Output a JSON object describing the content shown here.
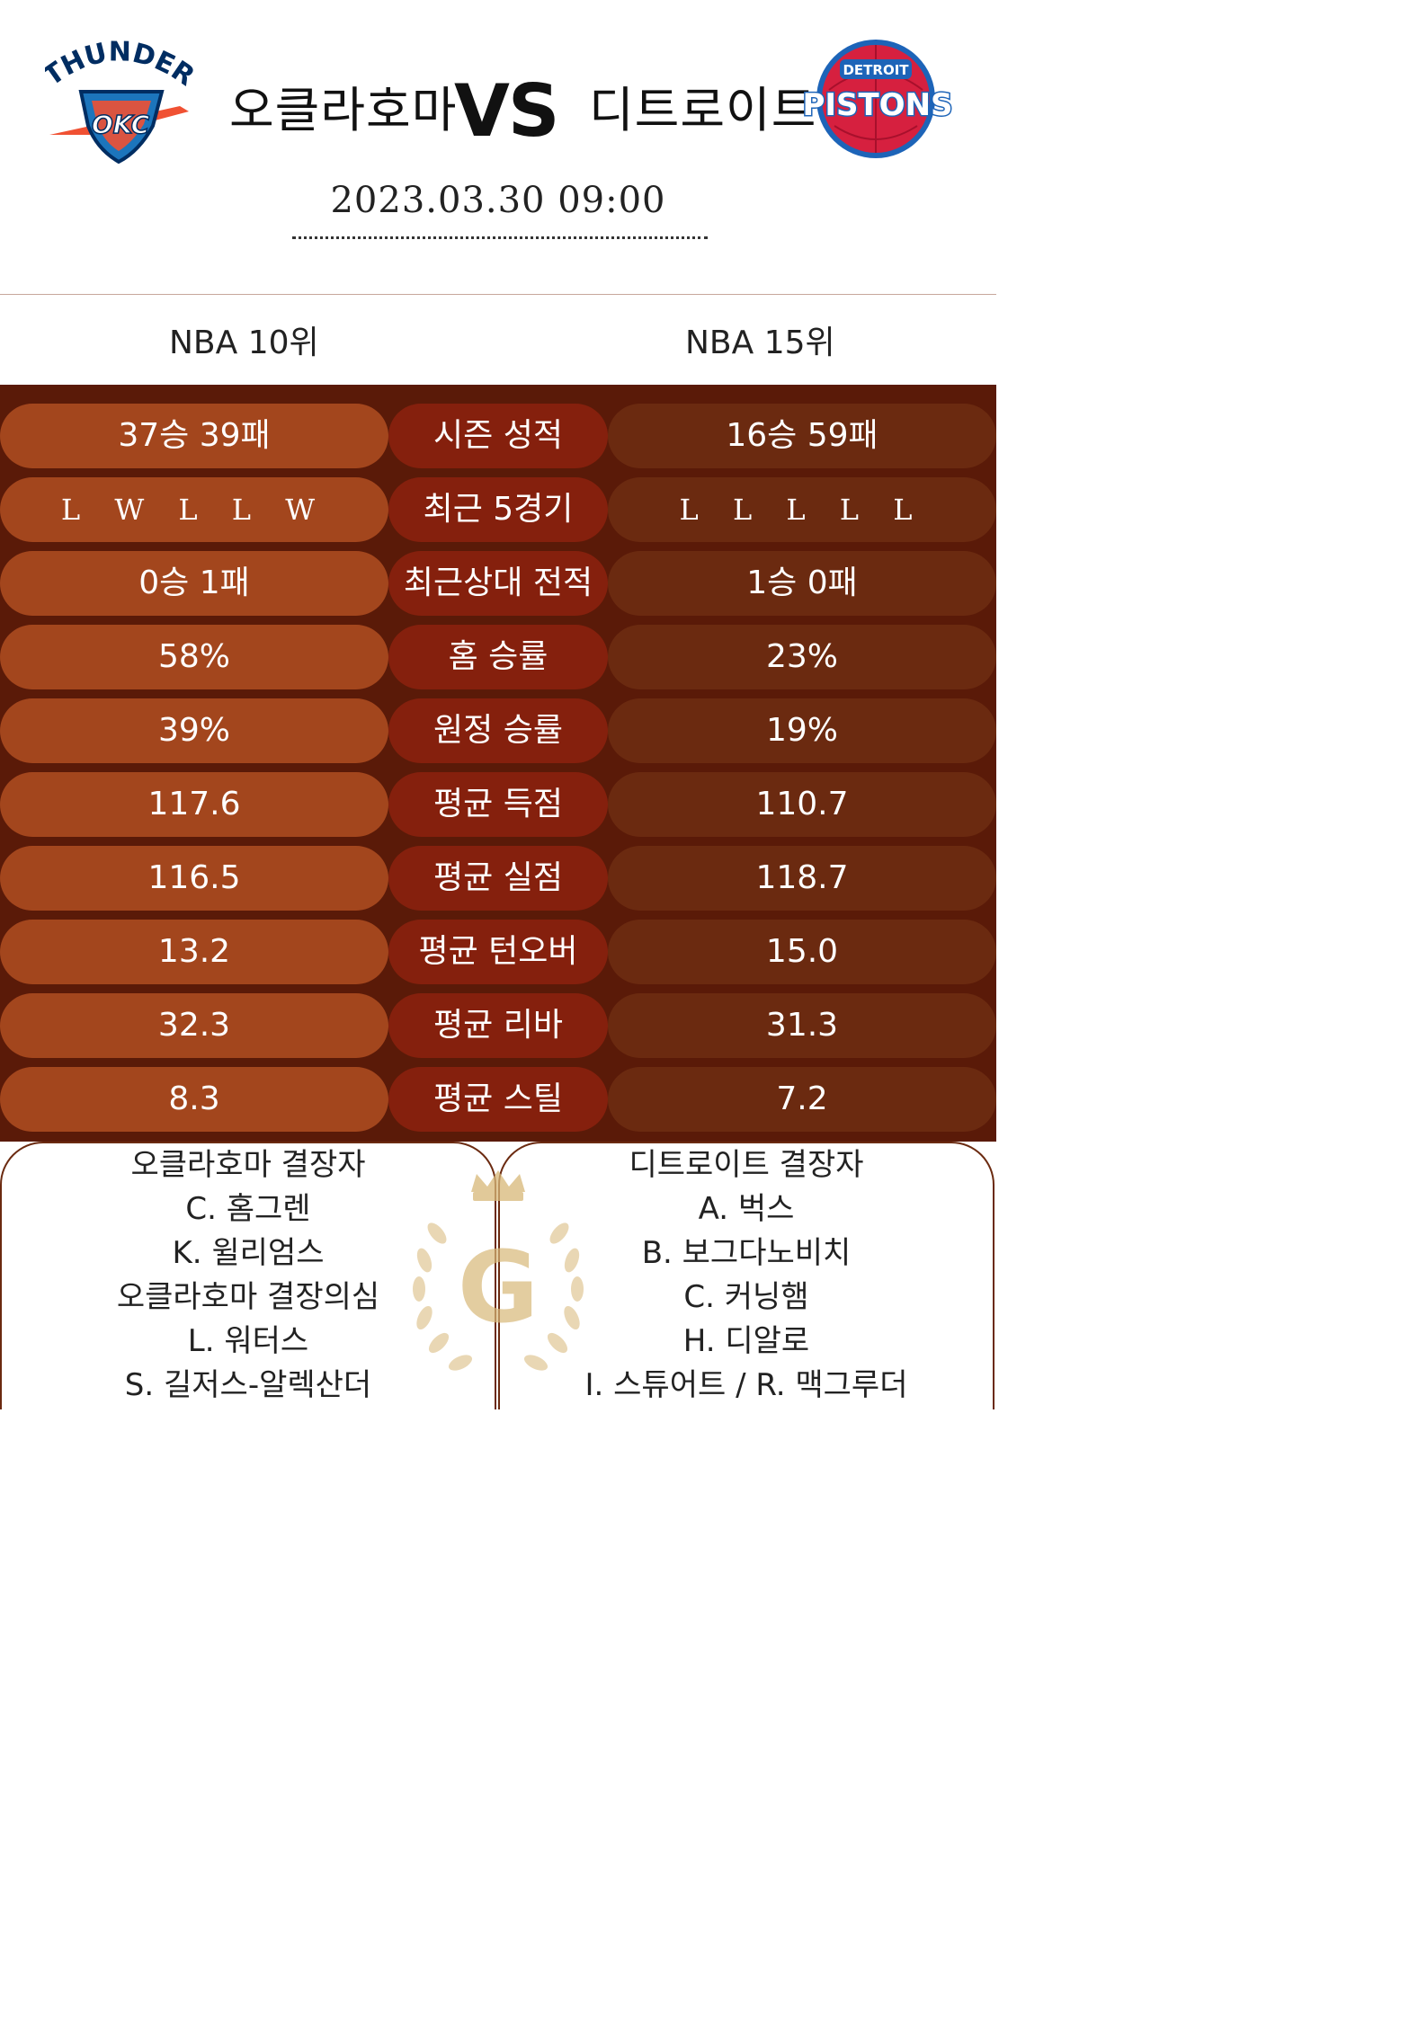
{
  "header": {
    "home_team": "오클라호마",
    "away_team": "디트로이트",
    "vs": "VS",
    "datetime": "2023.03.30  09:00",
    "home_logo": {
      "icon": "thunder-logo",
      "text": "THUNDER",
      "badge": "OKC"
    },
    "away_logo": {
      "icon": "pistons-logo",
      "text_top": "DETROIT",
      "text_main": "PISTONS"
    }
  },
  "ranks": {
    "home": "NBA 10위",
    "away": "NBA 15위"
  },
  "stats": [
    {
      "category": "시즌 성적",
      "home": "37승 39패",
      "away": "16승 59패"
    },
    {
      "category": "최근 5경기",
      "home": "L W L L W",
      "away": "L L L L L"
    },
    {
      "category": "최근상대 전적",
      "home": "0승 1패",
      "away": "1승 0패"
    },
    {
      "category": "홈 승률",
      "home": "58%",
      "away": "23%"
    },
    {
      "category": "원정 승률",
      "home": "39%",
      "away": "19%"
    },
    {
      "category": "평균 득점",
      "home": "117.6",
      "away": "110.7"
    },
    {
      "category": "평균 실점",
      "home": "116.5",
      "away": "118.7"
    },
    {
      "category": "평균 턴오버",
      "home": "13.2",
      "away": "15.0"
    },
    {
      "category": "평균 리바",
      "home": "32.3",
      "away": "31.3"
    },
    {
      "category": "평균 스틸",
      "home": "8.3",
      "away": "7.2"
    }
  ],
  "absences": {
    "home": {
      "title": "오클라호마 결장자",
      "players": [
        "C. 홈그렌",
        "K. 윌리엄스"
      ],
      "doubtful_title": "오클라호마 결장의심",
      "doubtful_players": [
        "L. 워터스",
        "S. 길저스-알렉산더"
      ]
    },
    "away": {
      "title": "디트로이트 결장자",
      "players": [
        "A. 벅스",
        "B. 보그다노비치",
        "C. 커닝햄",
        "H. 디알로",
        "I. 스튜어트 / R. 맥그루더"
      ]
    }
  },
  "emblem": {
    "icon": "crown-laurel-g-icon",
    "letter": "G"
  },
  "colors": {
    "panel_bg": "#5a1a08",
    "home_pill": "#a3461d",
    "category_pill": "#85200d",
    "away_pill": "#6b2a10",
    "gold": "#d8b878",
    "thunder_blue": "#1c75bc",
    "thunder_orange": "#f05133",
    "thunder_navy": "#002d62",
    "pistons_red": "#d6203f",
    "pistons_blue": "#1d64b8"
  }
}
